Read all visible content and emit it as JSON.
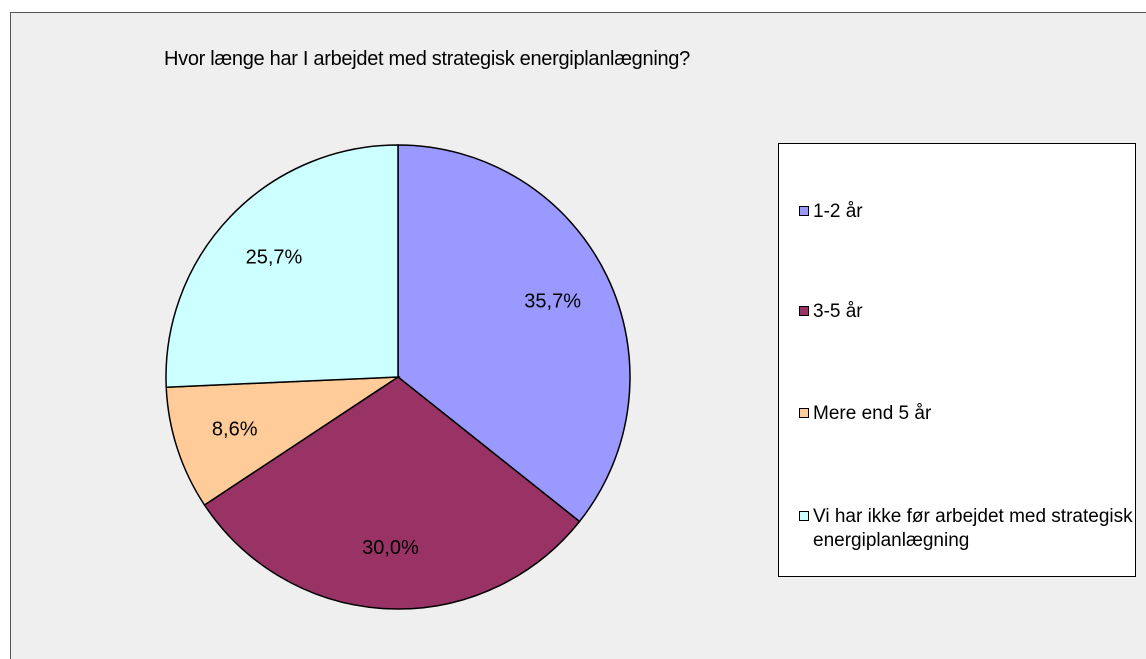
{
  "chart_data": {
    "type": "pie",
    "title": "Hvor længe har I arbejdet med strategisk energiplanlægning?",
    "categories": [
      "1-2 år",
      "3-5 år",
      "Mere end 5 år",
      "Vi har ikke før arbejdet med strategisk energiplanlægning"
    ],
    "values": [
      35.7,
      30.0,
      8.6,
      25.7
    ],
    "value_labels": [
      "35,7%",
      "30,0%",
      "8,6%",
      "25,7%"
    ],
    "colors": [
      "#9999ff",
      "#993366",
      "#ffcc99",
      "#ccffff"
    ],
    "legend": "right"
  }
}
